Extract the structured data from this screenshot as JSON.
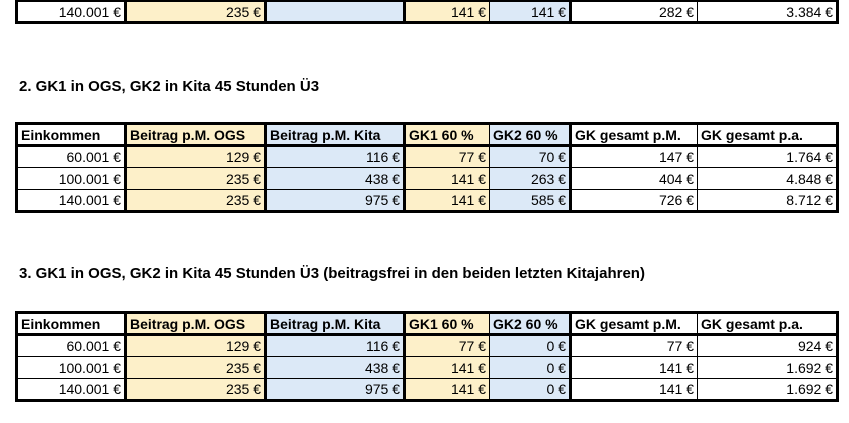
{
  "top_partial_row": [
    "140.001 €",
    "235 €",
    "",
    "141 €",
    "141 €",
    "282 €",
    "3.384 €"
  ],
  "section2": {
    "title": "2. GK1 in OGS, GK2 in Kita 45 Stunden Ü3",
    "headers": [
      "Einkommen",
      "Beitrag p.M. OGS",
      "Beitrag p.M. Kita",
      "GK1 60 %",
      "GK2 60 %",
      "GK gesamt p.M.",
      "GK gesamt p.a."
    ],
    "rows": [
      [
        "60.001 €",
        "129 €",
        "116 €",
        "77 €",
        "70 €",
        "147 €",
        "1.764 €"
      ],
      [
        "100.001 €",
        "235 €",
        "438 €",
        "141 €",
        "263 €",
        "404 €",
        "4.848 €"
      ],
      [
        "140.001 €",
        "235 €",
        "975 €",
        "141 €",
        "585 €",
        "726 €",
        "8.712 €"
      ]
    ]
  },
  "section3": {
    "title": "3. GK1 in OGS, GK2 in Kita 45 Stunden Ü3 (beitragsfrei in den beiden letzten Kitajahren)",
    "headers": [
      "Einkommen",
      "Beitrag p.M. OGS",
      "Beitrag p.M. Kita",
      "GK1 60 %",
      "GK2 60 %",
      "GK gesamt p.M.",
      "GK gesamt p.a."
    ],
    "rows": [
      [
        "60.001 €",
        "129 €",
        "116 €",
        "77 €",
        "0 €",
        "77 €",
        "924 €"
      ],
      [
        "100.001 €",
        "235 €",
        "438 €",
        "141 €",
        "0 €",
        "141 €",
        "1.692 €"
      ],
      [
        "140.001 €",
        "235 €",
        "975 €",
        "141 €",
        "0 €",
        "141 €",
        "1.692 €"
      ]
    ]
  }
}
